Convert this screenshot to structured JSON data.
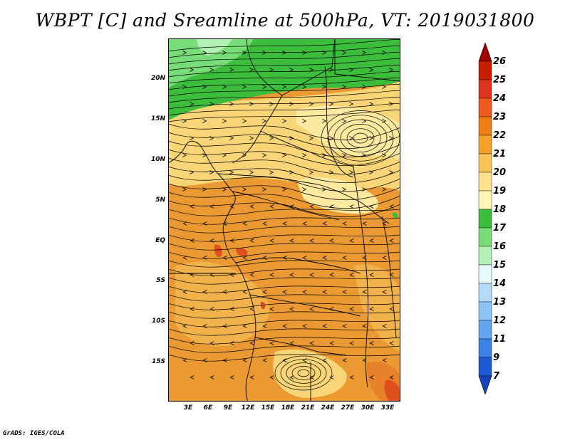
{
  "title": "WBPT [C] and Sreamline at 500hPa, VT: 2019031800",
  "credit": "GrADS: IGES/COLA",
  "map": {
    "lon_range": [
      0,
      35
    ],
    "lat_range": [
      -20,
      25
    ],
    "y_ticks": [
      "20N",
      "15N",
      "10N",
      "5N",
      "EQ",
      "5S",
      "10S",
      "15S"
    ],
    "x_ticks": [
      "3E",
      "6E",
      "9E",
      "12E",
      "15E",
      "18E",
      "21E",
      "24E",
      "27E",
      "30E",
      "33E"
    ],
    "shading_bands": [
      {
        "level": "16-17",
        "color": "#5ad25a"
      },
      {
        "level": "17-18",
        "color": "#3cbe3c"
      },
      {
        "level": "18-19",
        "color": "#fde9a0"
      },
      {
        "level": "19-20",
        "color": "#f8d577"
      },
      {
        "level": "20-21",
        "color": "#f2b24b"
      },
      {
        "level": "21-22",
        "color": "#eb9a33"
      },
      {
        "level": "22-23",
        "color": "#e8822a"
      },
      {
        "level": "23-24",
        "color": "#e0501e"
      }
    ]
  },
  "colorbar": {
    "labels": [
      "26",
      "25",
      "24",
      "23",
      "22",
      "21",
      "20",
      "19",
      "18",
      "17",
      "16",
      "15",
      "14",
      "13",
      "12",
      "11",
      "9",
      "7"
    ],
    "colors": [
      "#a50000",
      "#c81e00",
      "#e0321e",
      "#ee5a1e",
      "#f07d14",
      "#f5a228",
      "#fac35a",
      "#fde18c",
      "#fff5b4",
      "#3cbe3c",
      "#78dc78",
      "#b4f0b4",
      "#e6faff",
      "#b4dcfa",
      "#8cc3f5",
      "#64a5f0",
      "#3c82e6",
      "#1e5ad2",
      "#1441be"
    ]
  }
}
